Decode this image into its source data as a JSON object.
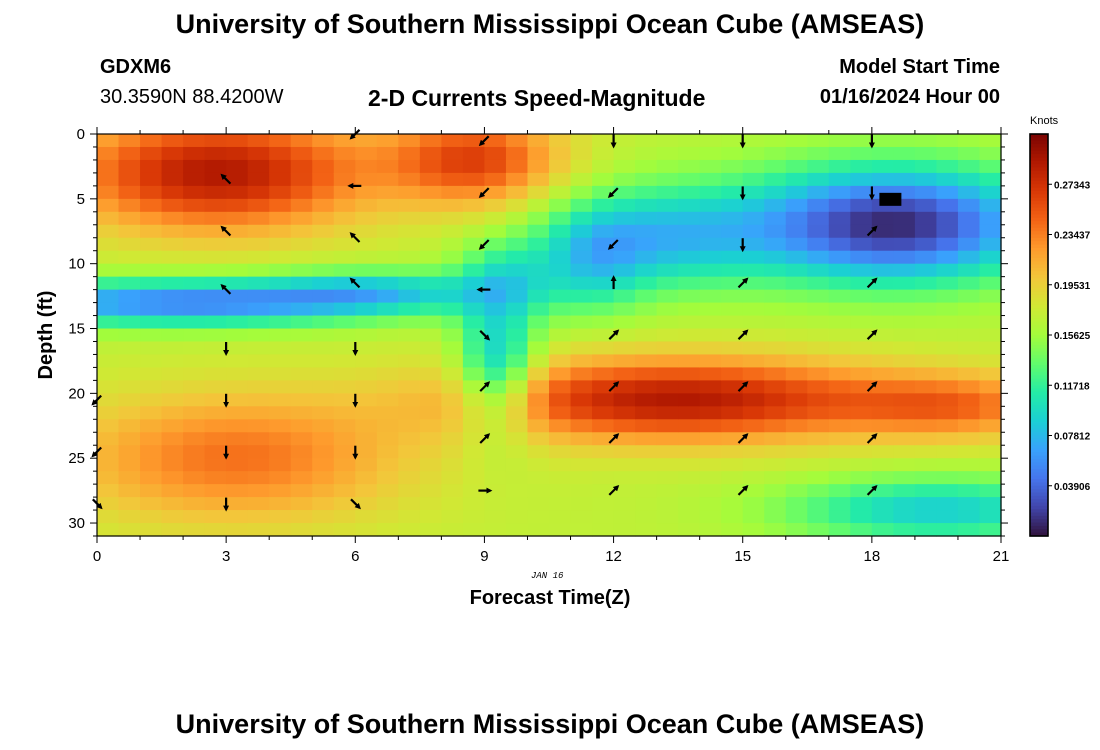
{
  "header": {
    "title": "University of Southern Mississippi Ocean Cube (AMSEAS)",
    "station": "GDXM6",
    "coords": "30.3590N  88.4200W",
    "subtitle": "2-D Currents Speed-Magnitude",
    "start_label": "Model Start Time",
    "start_value": "01/16/2024 Hour 00",
    "date_stamp": "JAN 16"
  },
  "footer": {
    "title": "University of Southern Mississippi Ocean Cube (AMSEAS)"
  },
  "colorbar": {
    "unit": "Knots",
    "ticks": [
      "0.27343",
      "0.23437",
      "0.19531",
      "0.15625",
      "0.11718",
      "0.07812",
      "0.03906"
    ],
    "tick_values": [
      0.27343,
      0.23437,
      0.19531,
      0.15625,
      0.11718,
      0.07812,
      0.03906
    ],
    "range": [
      0.0,
      0.3125
    ],
    "colors": [
      "#30123b",
      "#4145ab",
      "#4675ed",
      "#39a2fc",
      "#1bcfd4",
      "#24eca6",
      "#61fc6c",
      "#a4fc3b",
      "#d1e834",
      "#f3c63a",
      "#fe9b2d",
      "#f36315",
      "#d93806",
      "#b11901",
      "#7a0402"
    ]
  },
  "chart_data": {
    "type": "heatmap",
    "title": "2-D Currents Speed-Magnitude",
    "xlabel": "Forecast Time(Z)",
    "ylabel": "Depth (ft)",
    "xlim": [
      0,
      21
    ],
    "ylim": [
      0,
      31
    ],
    "x_ticks": [
      0,
      3,
      6,
      9,
      12,
      15,
      18,
      21
    ],
    "y_ticks": [
      0,
      5,
      10,
      15,
      20,
      25,
      30
    ],
    "x_tick_labels": [
      "0",
      "3",
      "6",
      "9",
      "12",
      "15",
      "18",
      "21"
    ],
    "y_tick_labels": [
      "0",
      "5",
      "10",
      "15",
      "20",
      "25",
      "30"
    ],
    "grid_step": {
      "time_hours": 0.5,
      "depth_ft": 1.0
    },
    "speed_field_knots": [
      {
        "name": "upper-left warm core",
        "time_hr": 2.8,
        "depth_ft": 3,
        "speed": 0.29
      },
      {
        "name": "upper-middle warm core",
        "time_hr": 8.8,
        "depth_ft": 2,
        "speed": 0.27
      },
      {
        "name": "lower-left warm core",
        "time_hr": 3.2,
        "depth_ft": 25,
        "speed": 0.245
      },
      {
        "name": "lower-right warm core",
        "time_hr": 13.5,
        "depth_ft": 20.5,
        "speed": 0.29
      },
      {
        "name": "upper-right cool core",
        "time_hr": 18.5,
        "depth_ft": 7,
        "speed": 0.005
      },
      {
        "name": "mid-left cool band",
        "time_hr": 2.0,
        "depth_ft": 13,
        "speed": 0.04
      },
      {
        "name": "central cool column",
        "time_hr": 9.3,
        "depth_ft": 18,
        "speed": 0.08
      },
      {
        "name": "lower-right cool patch",
        "time_hr": 19.5,
        "depth_ft": 29,
        "speed": 0.08
      }
    ],
    "vectors": [
      {
        "t": 0,
        "d": 20.5,
        "dir": "SW"
      },
      {
        "t": 0,
        "d": 24.5,
        "dir": "SW"
      },
      {
        "t": 0,
        "d": 28.5,
        "dir": "SE"
      },
      {
        "t": 3,
        "d": 3.5,
        "dir": "NW"
      },
      {
        "t": 3,
        "d": 7.5,
        "dir": "NW"
      },
      {
        "t": 3,
        "d": 12,
        "dir": "NW"
      },
      {
        "t": 3,
        "d": 16.5,
        "dir": "S"
      },
      {
        "t": 3,
        "d": 20.5,
        "dir": "S"
      },
      {
        "t": 3,
        "d": 24.5,
        "dir": "S"
      },
      {
        "t": 3,
        "d": 28.5,
        "dir": "S"
      },
      {
        "t": 6,
        "d": 0,
        "dir": "SW"
      },
      {
        "t": 6,
        "d": 4,
        "dir": "W"
      },
      {
        "t": 6,
        "d": 8,
        "dir": "NW"
      },
      {
        "t": 6,
        "d": 11.5,
        "dir": "NW"
      },
      {
        "t": 6,
        "d": 16.5,
        "dir": "S"
      },
      {
        "t": 6,
        "d": 20.5,
        "dir": "S"
      },
      {
        "t": 6,
        "d": 24.5,
        "dir": "S"
      },
      {
        "t": 6,
        "d": 28.5,
        "dir": "SE"
      },
      {
        "t": 9,
        "d": 0.5,
        "dir": "SW"
      },
      {
        "t": 9,
        "d": 4.5,
        "dir": "SW"
      },
      {
        "t": 9,
        "d": 8.5,
        "dir": "SW"
      },
      {
        "t": 9,
        "d": 12,
        "dir": "W"
      },
      {
        "t": 9,
        "d": 15.5,
        "dir": "SE"
      },
      {
        "t": 9,
        "d": 19.5,
        "dir": "NE"
      },
      {
        "t": 9,
        "d": 23.5,
        "dir": "NE"
      },
      {
        "t": 9,
        "d": 27.5,
        "dir": "E"
      },
      {
        "t": 12,
        "d": 0.5,
        "dir": "S"
      },
      {
        "t": 12,
        "d": 4.5,
        "dir": "SW"
      },
      {
        "t": 12,
        "d": 8.5,
        "dir": "SW"
      },
      {
        "t": 12,
        "d": 11.5,
        "dir": "N"
      },
      {
        "t": 12,
        "d": 15.5,
        "dir": "NE"
      },
      {
        "t": 12,
        "d": 19.5,
        "dir": "NE"
      },
      {
        "t": 12,
        "d": 23.5,
        "dir": "NE"
      },
      {
        "t": 12,
        "d": 27.5,
        "dir": "NE"
      },
      {
        "t": 15,
        "d": 0.5,
        "dir": "S"
      },
      {
        "t": 15,
        "d": 4.5,
        "dir": "S"
      },
      {
        "t": 15,
        "d": 8.5,
        "dir": "S"
      },
      {
        "t": 15,
        "d": 11.5,
        "dir": "NE"
      },
      {
        "t": 15,
        "d": 15.5,
        "dir": "NE"
      },
      {
        "t": 15,
        "d": 19.5,
        "dir": "NE"
      },
      {
        "t": 15,
        "d": 23.5,
        "dir": "NE"
      },
      {
        "t": 15,
        "d": 27.5,
        "dir": "NE"
      },
      {
        "t": 18,
        "d": 0.5,
        "dir": "S"
      },
      {
        "t": 18,
        "d": 4.5,
        "dir": "S"
      },
      {
        "t": 18,
        "d": 7.5,
        "dir": "NE"
      },
      {
        "t": 18,
        "d": 11.5,
        "dir": "NE"
      },
      {
        "t": 18,
        "d": 15.5,
        "dir": "NE"
      },
      {
        "t": 18,
        "d": 19.5,
        "dir": "NE"
      },
      {
        "t": 18,
        "d": 23.5,
        "dir": "NE"
      },
      {
        "t": 18,
        "d": 27.5,
        "dir": "NE"
      }
    ],
    "masked_cells": [
      {
        "time_hr": 18.5,
        "depth_ft": 5
      }
    ]
  }
}
